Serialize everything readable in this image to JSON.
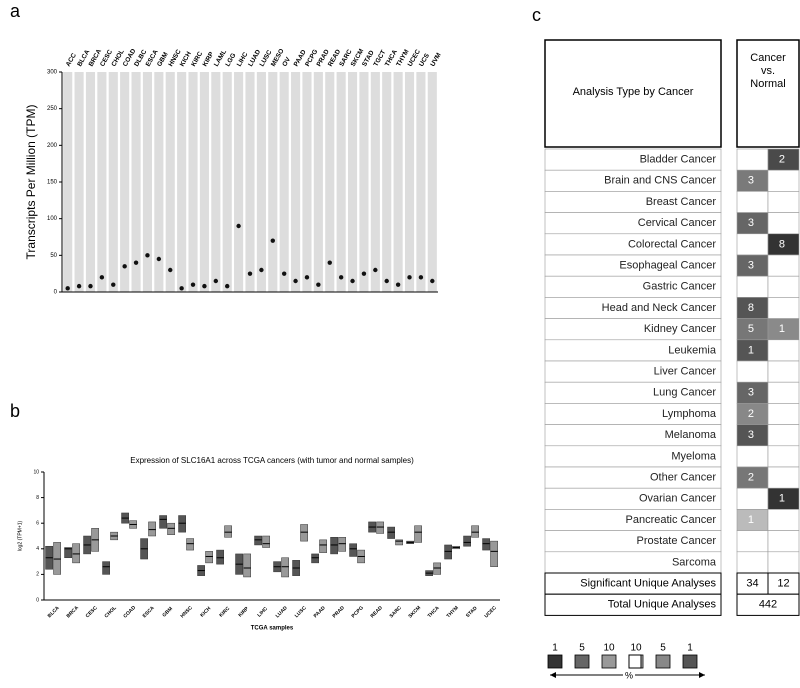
{
  "panels": [
    "a",
    "b",
    "c"
  ],
  "chart_data": [
    {
      "type": "strip",
      "ylabel": "Transcripts Per Million (TPM)",
      "ylim": [
        0,
        300
      ],
      "yticks": [
        0,
        50,
        100,
        150,
        200,
        250,
        300
      ],
      "categories": [
        "ACC",
        "BLCA",
        "BRCA",
        "CESC",
        "CHOL",
        "COAD",
        "DLBC",
        "ESCA",
        "GBM",
        "HNSC",
        "KICH",
        "KIRC",
        "KIRP",
        "LAML",
        "LGG",
        "LIHC",
        "LUAD",
        "LUSC",
        "MESO",
        "OV",
        "PAAD",
        "PCPG",
        "PRAD",
        "READ",
        "SARC",
        "SKCM",
        "STAD",
        "TGCT",
        "THCA",
        "THYM",
        "UCEC",
        "UCS",
        "UVM"
      ],
      "values": [
        5,
        8,
        8,
        20,
        10,
        35,
        40,
        50,
        45,
        30,
        5,
        10,
        8,
        15,
        8,
        90,
        25,
        30,
        70,
        25,
        15,
        20,
        10,
        40,
        20,
        15,
        25,
        30,
        15,
        10,
        20,
        20,
        15
      ],
      "color": "#111"
    },
    {
      "type": "box",
      "title": "Expression of SLC16A1 across TCGA cancers (with tumor and normal samples)",
      "ylabel": "log2 (TPM+1)",
      "xlabel": "TCGA samples",
      "ylim": [
        0,
        10
      ],
      "yticks": [
        0,
        2,
        4,
        6,
        8,
        10
      ],
      "categories": [
        "BLCA",
        "BRCA",
        "CESC",
        "CHOL",
        "COAD",
        "ESCA",
        "GBM",
        "HNSC",
        "KICH",
        "KIRC",
        "KIRP",
        "LIHC",
        "LUAD",
        "LUSC",
        "PAAD",
        "PRAD",
        "PCPG",
        "READ",
        "SARC",
        "SKCM",
        "THCA",
        "THYM",
        "STAD",
        "UCEC"
      ],
      "series": [
        {
          "color": "#555",
          "q1": [
            2.4,
            3.3,
            3.6,
            2.0,
            6.0,
            3.2,
            5.6,
            5.3,
            1.9,
            2.8,
            2.0,
            4.3,
            2.2,
            1.9,
            2.9,
            3.6,
            3.4,
            5.3,
            4.8,
            4.4,
            1.9,
            3.2,
            4.2,
            3.9
          ],
          "median": [
            3.3,
            4.0,
            4.3,
            2.6,
            6.4,
            4.0,
            6.3,
            6.0,
            2.3,
            3.3,
            2.8,
            4.7,
            2.6,
            2.5,
            3.3,
            4.3,
            4.0,
            5.7,
            5.3,
            4.5,
            2.1,
            3.8,
            4.5,
            4.4
          ],
          "q3": [
            4.2,
            4.1,
            5.0,
            3.0,
            6.8,
            4.8,
            6.6,
            6.6,
            2.7,
            3.9,
            3.6,
            5.0,
            3.0,
            3.1,
            3.6,
            4.9,
            4.4,
            6.1,
            5.7,
            4.6,
            2.3,
            4.3,
            5.0,
            4.8
          ]
        },
        {
          "color": "#999",
          "q1": [
            2.0,
            2.9,
            3.8,
            4.7,
            5.6,
            5.0,
            5.1,
            3.9,
            2.9,
            4.9,
            1.8,
            4.1,
            1.8,
            4.6,
            3.7,
            3.8,
            2.9,
            5.2,
            4.3,
            4.5,
            2.0,
            4.0,
            4.9,
            2.6
          ],
          "median": [
            3.2,
            3.6,
            4.7,
            5.0,
            5.9,
            5.5,
            5.6,
            4.4,
            3.4,
            5.3,
            2.5,
            4.4,
            2.6,
            5.3,
            4.3,
            4.4,
            3.4,
            5.7,
            4.6,
            5.3,
            2.5,
            4.1,
            5.3,
            3.8
          ],
          "q3": [
            4.5,
            4.4,
            5.6,
            5.3,
            6.2,
            6.1,
            6.0,
            4.8,
            3.8,
            5.8,
            3.6,
            5.0,
            3.3,
            5.9,
            4.7,
            4.9,
            3.9,
            6.1,
            4.7,
            5.8,
            2.9,
            4.2,
            5.8,
            4.6
          ]
        }
      ]
    }
  ],
  "table": {
    "header": "Analysis Type by Cancer",
    "column": "Cancer vs. Normal",
    "rows": [
      {
        "name": "Bladder Cancer",
        "up": null,
        "up_color": null,
        "down": 2,
        "down_color": "#4a4a4a"
      },
      {
        "name": "Brain and CNS Cancer",
        "up": 3,
        "up_color": "#7a7a7a",
        "down": null,
        "down_color": null
      },
      {
        "name": "Breast Cancer",
        "up": null,
        "up_color": null,
        "down": null,
        "down_color": null
      },
      {
        "name": "Cervical Cancer",
        "up": 3,
        "up_color": "#666",
        "down": null,
        "down_color": null
      },
      {
        "name": "Colorectal Cancer",
        "up": null,
        "up_color": null,
        "down": 8,
        "down_color": "#333"
      },
      {
        "name": "Esophageal Cancer",
        "up": 3,
        "up_color": "#666",
        "down": null,
        "down_color": null
      },
      {
        "name": "Gastric Cancer",
        "up": null,
        "up_color": null,
        "down": null,
        "down_color": null
      },
      {
        "name": "Head and Neck Cancer",
        "up": 8,
        "up_color": "#555",
        "down": null,
        "down_color": null
      },
      {
        "name": "Kidney Cancer",
        "up": 5,
        "up_color": "#777",
        "down": 1,
        "down_color": "#8a8a8a"
      },
      {
        "name": "Leukemia",
        "up": 1,
        "up_color": "#555",
        "down": null,
        "down_color": null
      },
      {
        "name": "Liver Cancer",
        "up": null,
        "up_color": null,
        "down": null,
        "down_color": null
      },
      {
        "name": "Lung Cancer",
        "up": 3,
        "up_color": "#666",
        "down": null,
        "down_color": null
      },
      {
        "name": "Lymphoma",
        "up": 2,
        "up_color": "#888",
        "down": null,
        "down_color": null
      },
      {
        "name": "Melanoma",
        "up": 3,
        "up_color": "#555",
        "down": null,
        "down_color": null
      },
      {
        "name": "Myeloma",
        "up": null,
        "up_color": null,
        "down": null,
        "down_color": null
      },
      {
        "name": "Other Cancer",
        "up": 2,
        "up_color": "#777",
        "down": null,
        "down_color": null
      },
      {
        "name": "Ovarian Cancer",
        "up": null,
        "up_color": null,
        "down": 1,
        "down_color": "#333"
      },
      {
        "name": "Pancreatic Cancer",
        "up": 1,
        "up_color": "#bbb",
        "down": null,
        "down_color": null
      },
      {
        "name": "Prostate Cancer",
        "up": null,
        "up_color": null,
        "down": null,
        "down_color": null
      },
      {
        "name": "Sarcoma",
        "up": null,
        "up_color": null,
        "down": null,
        "down_color": null
      }
    ],
    "significant": {
      "label": "Significant Unique Analyses",
      "up": 34,
      "down": 12
    },
    "total": {
      "label": "Total Unique Analyses",
      "value": 442
    },
    "legend": {
      "values": [
        1,
        5,
        10,
        10,
        5,
        1
      ],
      "colors": [
        "#333",
        "#666",
        "#999",
        "#bbb",
        "#888",
        "#555"
      ],
      "unit": "%"
    }
  }
}
